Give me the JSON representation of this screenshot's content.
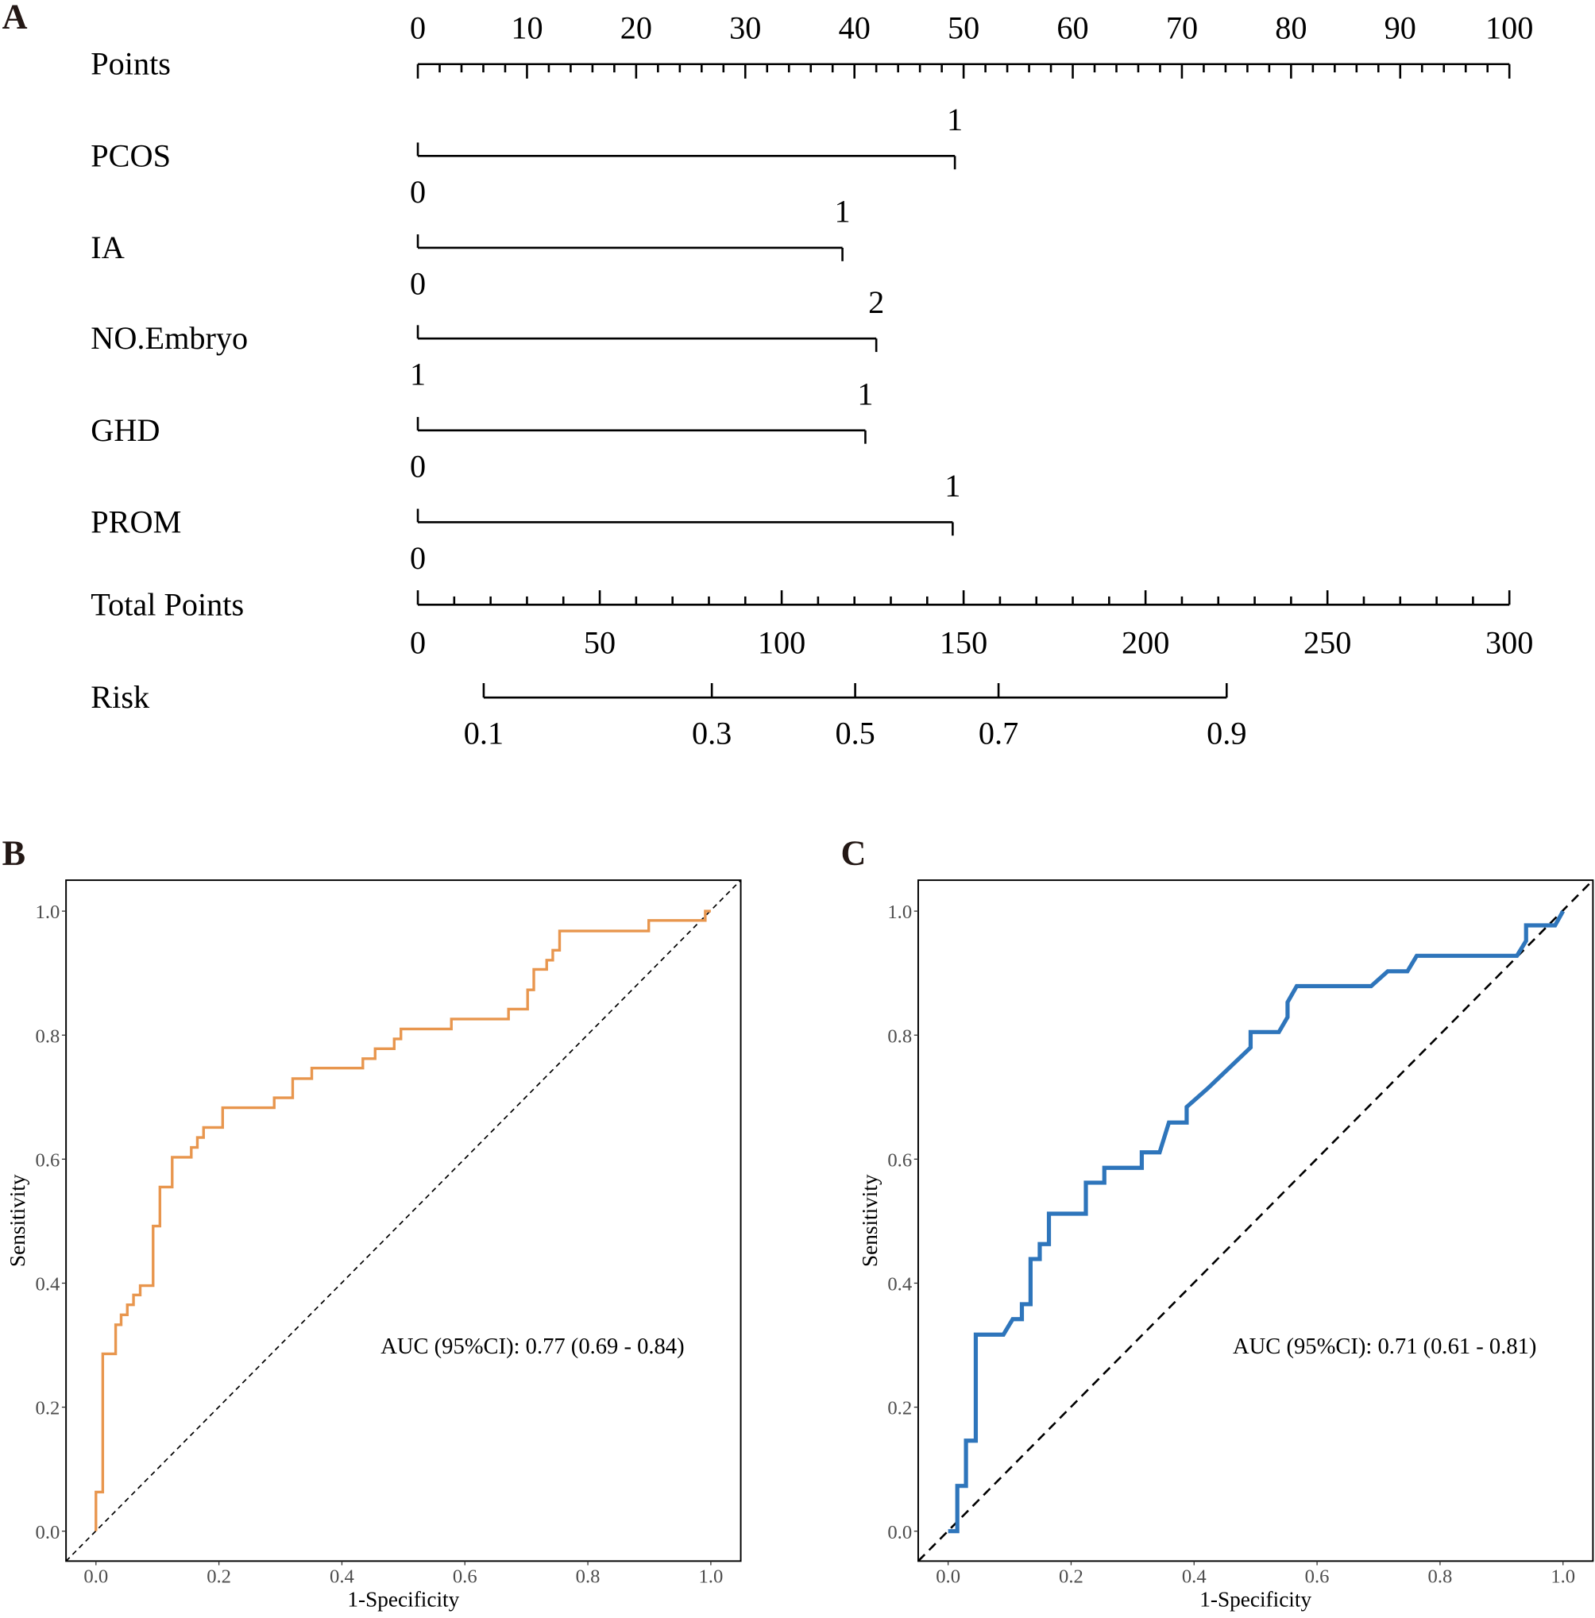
{
  "panels": {
    "a": "A",
    "b": "B",
    "c": "C"
  },
  "chart_data": [
    {
      "type": "nomogram",
      "points_axis": {
        "label": "Points",
        "range": [
          0,
          100
        ],
        "tick_labels": [
          "0",
          "10",
          "20",
          "30",
          "40",
          "50",
          "60",
          "70",
          "80",
          "90",
          "100"
        ],
        "minor_step": 2
      },
      "variables": [
        {
          "name": "PCOS",
          "levels": [
            {
              "label": "0",
              "points": 0
            },
            {
              "label": "1",
              "points": 49.2
            }
          ]
        },
        {
          "name": "IA",
          "levels": [
            {
              "label": "0",
              "points": 0
            },
            {
              "label": "1",
              "points": 38.9
            }
          ]
        },
        {
          "name": "NO.Embryo",
          "levels": [
            {
              "label": "1",
              "points": 0
            },
            {
              "label": "2",
              "points": 42.0
            }
          ]
        },
        {
          "name": "GHD",
          "levels": [
            {
              "label": "0",
              "points": 0
            },
            {
              "label": "1",
              "points": 41.0
            }
          ]
        },
        {
          "name": "PROM",
          "levels": [
            {
              "label": "0",
              "points": 0
            },
            {
              "label": "1",
              "points": 49.0
            }
          ]
        }
      ],
      "total_points_axis": {
        "label": "Total Points",
        "range": [
          0,
          300
        ],
        "tick_labels": [
          "0",
          "50",
          "100",
          "150",
          "200",
          "250",
          "300"
        ],
        "minor_step": 10
      },
      "risk_axis": {
        "label": "Risk",
        "ticks": [
          {
            "label": "0.1",
            "total_points": 18.1
          },
          {
            "label": "0.3",
            "total_points": 80.8
          },
          {
            "label": "0.5",
            "total_points": 120.2
          },
          {
            "label": "0.7",
            "total_points": 159.6
          },
          {
            "label": "0.9",
            "total_points": 222.3
          }
        ]
      }
    },
    {
      "type": "line",
      "xlabel": "1-Specificity",
      "ylabel": "Sensitivity",
      "xlim": [
        0,
        1
      ],
      "ylim": [
        0,
        1
      ],
      "x_ticks": [
        "0.0",
        "0.2",
        "0.4",
        "0.6",
        "0.8",
        "1.0"
      ],
      "y_ticks": [
        "0.0",
        "0.2",
        "0.4",
        "0.6",
        "0.8",
        "1.0"
      ],
      "annotation": "AUC (95%CI): 0.77 (0.69 - 0.84)",
      "color": "#E8964E",
      "reference_line": "diagonal dashed",
      "points": [
        [
          0,
          0
        ],
        [
          0,
          0.063
        ],
        [
          0.011,
          0.063
        ],
        [
          0.011,
          0.286
        ],
        [
          0.032,
          0.286
        ],
        [
          0.032,
          0.333
        ],
        [
          0.041,
          0.333
        ],
        [
          0.041,
          0.349
        ],
        [
          0.051,
          0.349
        ],
        [
          0.051,
          0.365
        ],
        [
          0.061,
          0.365
        ],
        [
          0.061,
          0.381
        ],
        [
          0.072,
          0.381
        ],
        [
          0.072,
          0.396
        ],
        [
          0.093,
          0.396
        ],
        [
          0.093,
          0.492
        ],
        [
          0.104,
          0.492
        ],
        [
          0.104,
          0.555
        ],
        [
          0.124,
          0.555
        ],
        [
          0.124,
          0.603
        ],
        [
          0.155,
          0.603
        ],
        [
          0.155,
          0.619
        ],
        [
          0.165,
          0.619
        ],
        [
          0.165,
          0.635
        ],
        [
          0.175,
          0.635
        ],
        [
          0.175,
          0.651
        ],
        [
          0.206,
          0.651
        ],
        [
          0.206,
          0.683
        ],
        [
          0.29,
          0.683
        ],
        [
          0.29,
          0.699
        ],
        [
          0.32,
          0.699
        ],
        [
          0.32,
          0.73
        ],
        [
          0.351,
          0.73
        ],
        [
          0.351,
          0.747
        ],
        [
          0.434,
          0.747
        ],
        [
          0.434,
          0.762
        ],
        [
          0.454,
          0.762
        ],
        [
          0.454,
          0.778
        ],
        [
          0.485,
          0.778
        ],
        [
          0.485,
          0.794
        ],
        [
          0.496,
          0.794
        ],
        [
          0.496,
          0.81
        ],
        [
          0.578,
          0.81
        ],
        [
          0.578,
          0.826
        ],
        [
          0.671,
          0.826
        ],
        [
          0.671,
          0.842
        ],
        [
          0.702,
          0.842
        ],
        [
          0.702,
          0.873
        ],
        [
          0.712,
          0.873
        ],
        [
          0.712,
          0.906
        ],
        [
          0.733,
          0.906
        ],
        [
          0.733,
          0.921
        ],
        [
          0.743,
          0.921
        ],
        [
          0.743,
          0.937
        ],
        [
          0.754,
          0.937
        ],
        [
          0.754,
          0.968
        ],
        [
          0.899,
          0.968
        ],
        [
          0.899,
          0.985
        ],
        [
          0.991,
          0.985
        ],
        [
          0.991,
          1.0
        ],
        [
          1.0,
          1.0
        ]
      ]
    },
    {
      "type": "line",
      "xlabel": "1-Specificity",
      "ylabel": "Sensitivity",
      "xlim": [
        0,
        1
      ],
      "ylim": [
        0,
        1
      ],
      "x_ticks": [
        "0.0",
        "0.2",
        "0.4",
        "0.6",
        "0.8",
        "1.0"
      ],
      "y_ticks": [
        "0.0",
        "0.2",
        "0.4",
        "0.6",
        "0.8",
        "1.0"
      ],
      "annotation": "AUC (95%CI): 0.71 (0.61 - 0.81)",
      "color": "#2E75BB",
      "reference_line": "diagonal dashed",
      "points": [
        [
          0,
          0
        ],
        [
          0.015,
          0
        ],
        [
          0.015,
          0.073
        ],
        [
          0.029,
          0.073
        ],
        [
          0.029,
          0.146
        ],
        [
          0.045,
          0.146
        ],
        [
          0.045,
          0.317
        ],
        [
          0.09,
          0.317
        ],
        [
          0.105,
          0.342
        ],
        [
          0.12,
          0.342
        ],
        [
          0.12,
          0.366
        ],
        [
          0.134,
          0.366
        ],
        [
          0.134,
          0.439
        ],
        [
          0.149,
          0.439
        ],
        [
          0.149,
          0.463
        ],
        [
          0.164,
          0.463
        ],
        [
          0.164,
          0.512
        ],
        [
          0.224,
          0.512
        ],
        [
          0.224,
          0.562
        ],
        [
          0.254,
          0.562
        ],
        [
          0.254,
          0.586
        ],
        [
          0.315,
          0.586
        ],
        [
          0.315,
          0.611
        ],
        [
          0.344,
          0.611
        ],
        [
          0.359,
          0.659
        ],
        [
          0.388,
          0.659
        ],
        [
          0.388,
          0.684
        ],
        [
          0.421,
          0.713
        ],
        [
          0.492,
          0.78
        ],
        [
          0.492,
          0.805
        ],
        [
          0.538,
          0.805
        ],
        [
          0.552,
          0.829
        ],
        [
          0.552,
          0.853
        ],
        [
          0.567,
          0.879
        ],
        [
          0.688,
          0.879
        ],
        [
          0.715,
          0.903
        ],
        [
          0.747,
          0.903
        ],
        [
          0.762,
          0.928
        ],
        [
          0.925,
          0.928
        ],
        [
          0.94,
          0.952
        ],
        [
          0.94,
          0.977
        ],
        [
          0.987,
          0.977
        ],
        [
          1.0,
          1.0
        ]
      ]
    }
  ]
}
